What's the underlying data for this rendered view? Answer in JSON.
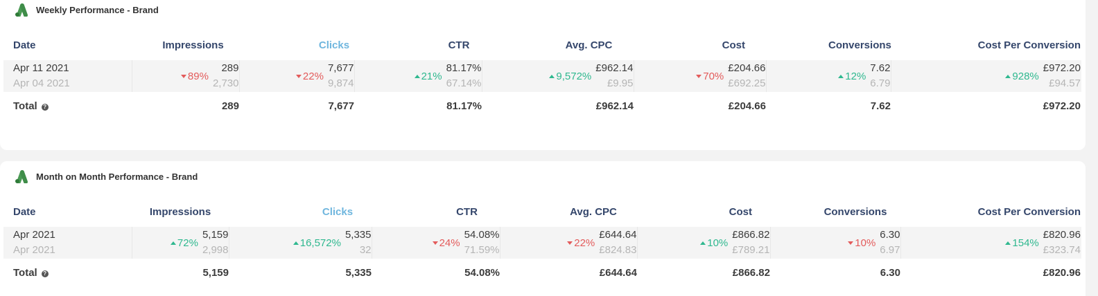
{
  "colors": {
    "up": "#2fb88f",
    "down": "#e35b5b",
    "header": "#34466b",
    "clicks_header": "#6fb6de"
  },
  "icons": {
    "logo": "google-ads-icon",
    "info": "info-icon"
  },
  "columns": [
    "Date",
    "Impressions",
    "Clicks",
    "CTR",
    "Avg. CPC",
    "Cost",
    "Conversions",
    "Cost Per Conversion"
  ],
  "weekly": {
    "title": "Weekly Performance - Brand",
    "current_date": "Apr 11 2021",
    "previous_date": "Apr 04 2021",
    "metrics": [
      {
        "change": "89%",
        "direction": "down",
        "current": "289",
        "previous": "2,730"
      },
      {
        "change": "22%",
        "direction": "down",
        "current": "7,677",
        "previous": "9,874"
      },
      {
        "change": "21%",
        "direction": "up",
        "current": "81.17%",
        "previous": "67.14%"
      },
      {
        "change": "9,572%",
        "direction": "up",
        "current": "£962.14",
        "previous": "£9.95"
      },
      {
        "change": "70%",
        "direction": "down",
        "current": "£204.66",
        "previous": "£692.25"
      },
      {
        "change": "12%",
        "direction": "up",
        "current": "7.62",
        "previous": "6.79"
      },
      {
        "change": "928%",
        "direction": "up",
        "current": "£972.20",
        "previous": "£94.57"
      }
    ],
    "total_label": "Total",
    "totals": [
      "289",
      "7,677",
      "81.17%",
      "£962.14",
      "£204.66",
      "7.62",
      "£972.20"
    ]
  },
  "monthly": {
    "title": "Month on Month Performance - Brand",
    "current_date": "Apr 2021",
    "previous_date": "Apr 2021",
    "metrics": [
      {
        "change": "72%",
        "direction": "up",
        "current": "5,159",
        "previous": "2,998"
      },
      {
        "change": "16,572%",
        "direction": "up",
        "current": "5,335",
        "previous": "32"
      },
      {
        "change": "24%",
        "direction": "down",
        "current": "54.08%",
        "previous": "71.59%"
      },
      {
        "change": "22%",
        "direction": "down",
        "current": "£644.64",
        "previous": "£824.83"
      },
      {
        "change": "10%",
        "direction": "up",
        "current": "£866.82",
        "previous": "£789.21"
      },
      {
        "change": "10%",
        "direction": "down",
        "current": "6.30",
        "previous": "6.97"
      },
      {
        "change": "154%",
        "direction": "up",
        "current": "£820.96",
        "previous": "£323.74"
      }
    ],
    "total_label": "Total",
    "totals": [
      "5,159",
      "5,335",
      "54.08%",
      "£644.64",
      "£866.82",
      "6.30",
      "£820.96"
    ]
  }
}
